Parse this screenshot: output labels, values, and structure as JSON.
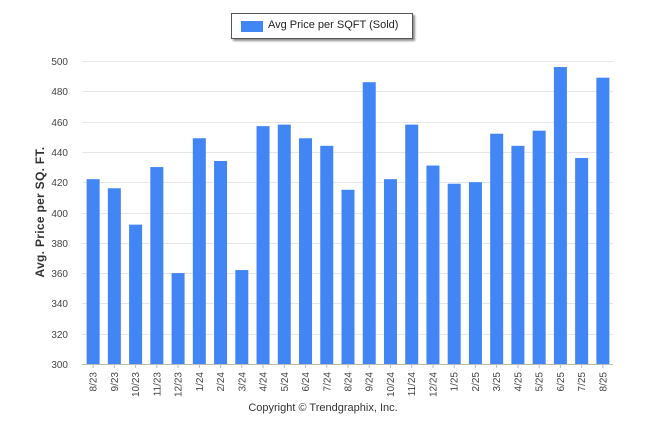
{
  "legend": {
    "label": "Avg Price per SQFT (Sold)"
  },
  "footer": {
    "copyright": "Copyright © Trendgraphix, Inc."
  },
  "chart_data": {
    "type": "bar",
    "title": "",
    "xlabel": "",
    "ylabel": "Avg. Price per SQ. FT.",
    "ylim": [
      300,
      500
    ],
    "yticks": [
      300,
      320,
      340,
      360,
      380,
      400,
      420,
      440,
      460,
      480,
      500
    ],
    "grid": true,
    "legend_position": "top-center",
    "bar_color": "#4285f4",
    "categories": [
      "8/23",
      "9/23",
      "10/23",
      "11/23",
      "12/23",
      "1/24",
      "2/24",
      "3/24",
      "4/24",
      "5/24",
      "6/24",
      "7/24",
      "8/24",
      "9/24",
      "10/24",
      "11/24",
      "12/24",
      "1/25",
      "2/25",
      "3/25",
      "4/25",
      "5/25",
      "6/25",
      "7/25",
      "8/25"
    ],
    "series": [
      {
        "name": "Avg Price per SQFT (Sold)",
        "values": [
          422,
          416,
          392,
          430,
          360,
          449,
          434,
          362,
          457,
          458,
          449,
          444,
          415,
          486,
          422,
          458,
          431,
          419,
          420,
          452,
          444,
          454,
          496,
          436,
          489
        ]
      }
    ]
  }
}
